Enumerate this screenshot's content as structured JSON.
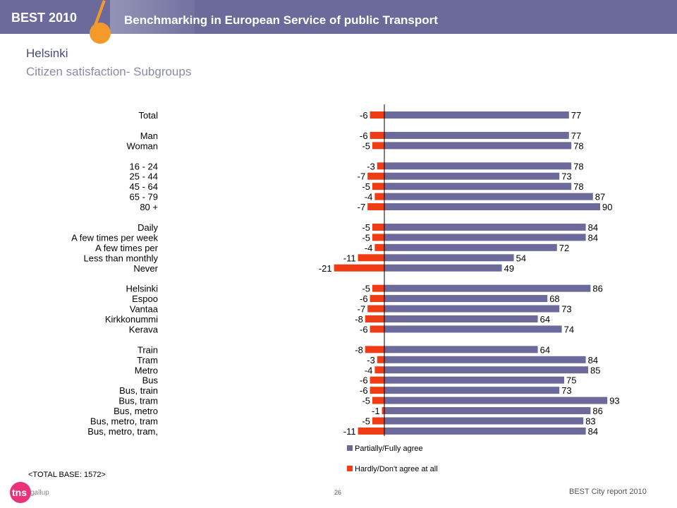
{
  "header": {
    "brand": "BEST 2010",
    "title": "Benchmarking in European Service of public Transport"
  },
  "page": {
    "city": "Helsinki",
    "subtitle": "Citizen satisfaction- Subgroups",
    "total_base": "<TOTAL BASE: 1572>",
    "page_number": "26",
    "report_name": "BEST City report 2010",
    "logo_text": "tns",
    "logo_subtext": "gallup"
  },
  "colors": {
    "header_bg": "#6b6a9b",
    "accent_orange": "#f39a2b",
    "agree_bar": "#6b6a9b",
    "disagree_bar": "#f03c14"
  },
  "chart_data": {
    "type": "bar",
    "orientation": "horizontal-diverging",
    "categories": [
      "Total",
      "Man",
      "Woman",
      "16 - 24",
      "25 - 44",
      "45 - 64",
      "65 - 79",
      "80 +",
      "Daily",
      "A few times per week",
      "A few times per",
      "Less than monthly",
      "Never",
      "Helsinki",
      "Espoo",
      "Vantaa",
      "Kirkkonummi",
      "Kerava",
      "Train",
      "Tram",
      "Metro",
      "Bus",
      "Bus, train",
      "Bus, tram",
      "Bus, metro",
      "Bus, metro, tram",
      "Bus, metro, tram,"
    ],
    "groups": [
      1,
      2,
      5,
      5,
      5,
      9
    ],
    "series": [
      {
        "name": "Partially/Fully agree",
        "color": "#6b6a9b",
        "values": [
          77,
          77,
          78,
          78,
          73,
          78,
          87,
          90,
          84,
          84,
          72,
          54,
          49,
          86,
          68,
          73,
          64,
          74,
          64,
          84,
          85,
          75,
          73,
          93,
          86,
          83,
          84
        ]
      },
      {
        "name": "Hardly/Don't agree at all",
        "color": "#f03c14",
        "values": [
          -6,
          -6,
          -5,
          -3,
          -7,
          -5,
          -4,
          -7,
          -5,
          -5,
          -4,
          -11,
          -21,
          -5,
          -6,
          -7,
          -8,
          -6,
          -8,
          -3,
          -4,
          -6,
          -6,
          -5,
          -1,
          -5,
          -11
        ]
      }
    ],
    "legend_position": "bottom-center"
  }
}
